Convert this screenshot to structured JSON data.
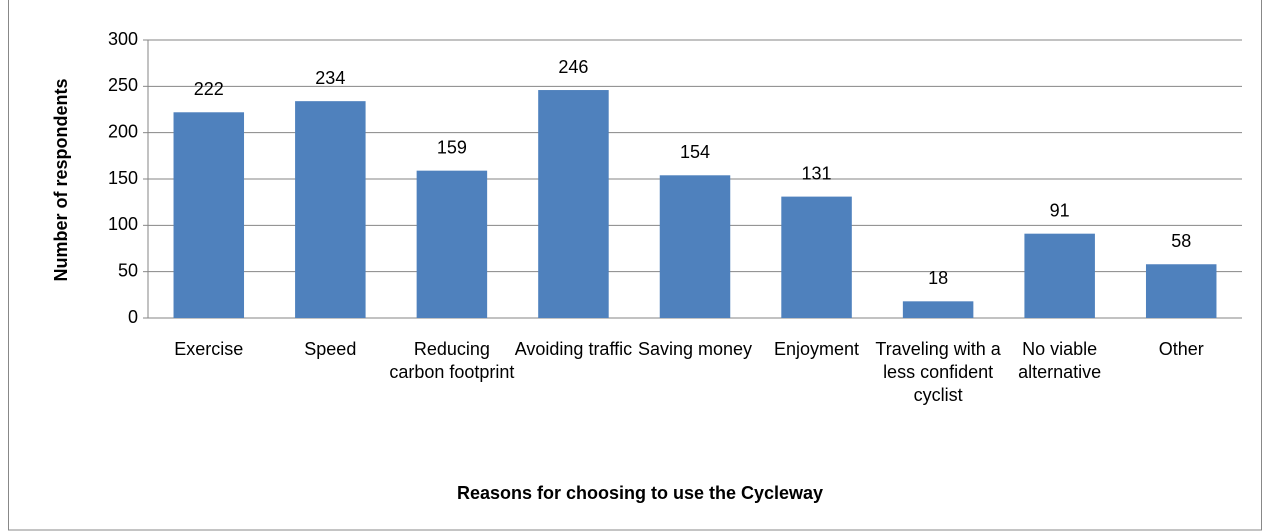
{
  "chart_data": {
    "type": "bar",
    "categories": [
      "Exercise",
      "Speed",
      "Reducing carbon footprint",
      "Avoiding traffic",
      "Saving money",
      "Enjoyment",
      "Traveling with a less confident cyclist",
      "No viable alternative",
      "Other"
    ],
    "values": [
      222,
      234,
      159,
      246,
      154,
      131,
      18,
      91,
      58
    ],
    "color": "#4f81bd",
    "ylim": [
      0,
      300
    ],
    "yticks": [
      0,
      50,
      100,
      150,
      200,
      250,
      300
    ],
    "grid": true,
    "x_label": "Reasons for choosing to use the Cycleway",
    "y_label": "Number of respondents"
  }
}
